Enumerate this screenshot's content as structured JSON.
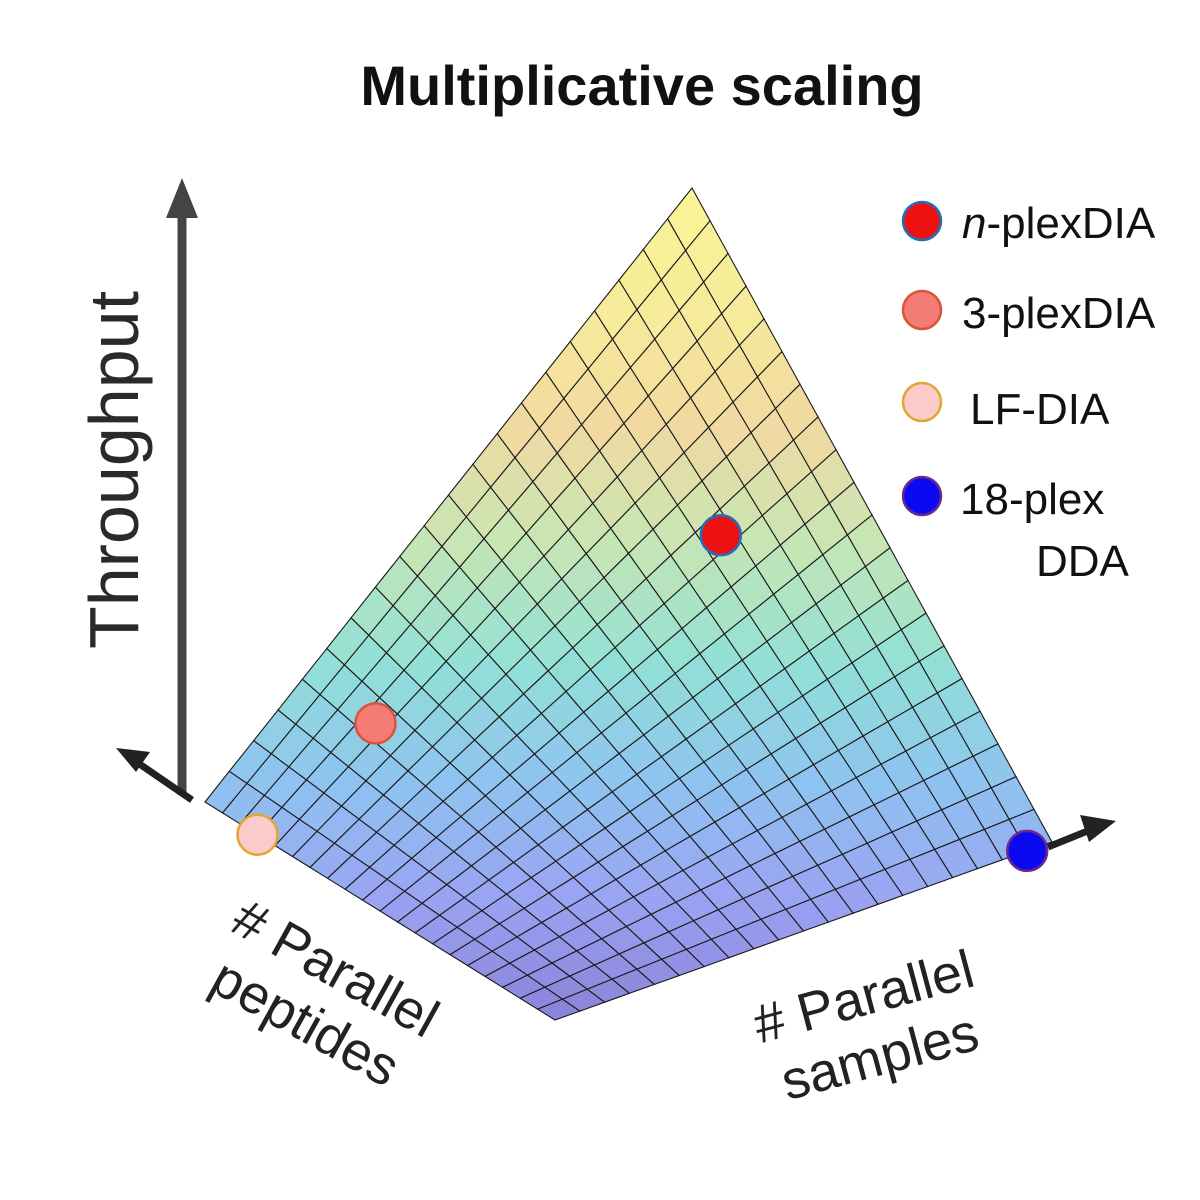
{
  "chart_data": {
    "type": "surface",
    "title": "Multiplicative scaling",
    "zlabel": "Throughput",
    "xlabel": [
      "# Parallel",
      "peptides"
    ],
    "ylabel": [
      "# Parallel",
      "samples"
    ],
    "surface": "throughput = parallel peptides × parallel samples",
    "grid_divisions": 20,
    "grid": true,
    "colormap": [
      "#8a82d8",
      "#9aa2f2",
      "#8ec3f0",
      "#92e0d6",
      "#c6e6b4",
      "#f2d9a0",
      "#f6ec9a",
      "#fbf597"
    ],
    "legend_position": "top-right",
    "points": [
      {
        "label_prefix": "n",
        "label": "-plexDIA",
        "peptides": 0.62,
        "samples": 0.78,
        "color": "#ee1111",
        "edge": "#1f6fbf"
      },
      {
        "label_prefix": "",
        "label": "3-plexDIA",
        "peptides": 0.82,
        "samples": 0.22,
        "color": "#f47c74",
        "edge": "#d8553a"
      },
      {
        "label_prefix": "",
        "label": "LF-DIA",
        "peptides": 0.85,
        "samples": 0.0,
        "color": "#fbcbcb",
        "edge": "#e3a62e"
      },
      {
        "label_prefix": "",
        "label": "18-plex",
        "label_line2": "DDA",
        "peptides": 0.0,
        "samples": 0.95,
        "color": "#0a0af0",
        "edge": "#6b2a8a"
      }
    ]
  }
}
